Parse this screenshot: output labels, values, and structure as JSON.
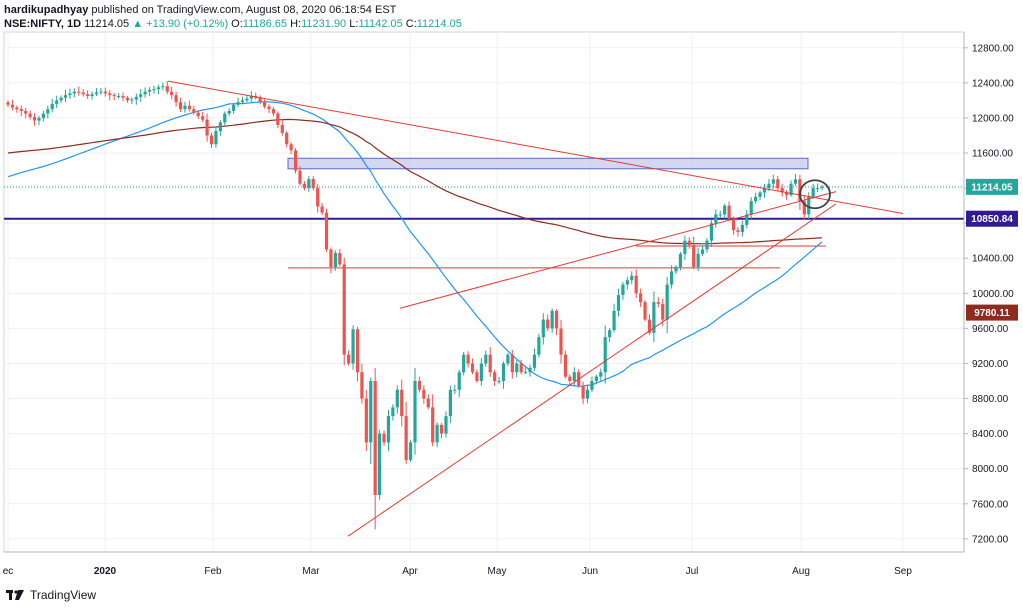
{
  "header": {
    "author": "hardikupadhyay",
    "published": "published on TradingView.com, August 08, 2020 06:18:54 EST",
    "symbol": "NSE:NIFTY, 1D",
    "last": "11214.05",
    "change": "▲ +13.90 (+0.12%)",
    "o_label": "O:",
    "o_val": "11186.65",
    "h_label": "H:",
    "h_val": "11231.90",
    "l_label": "L:",
    "l_val": "11142.05",
    "c_label": "C:",
    "c_val": "11214.05"
  },
  "footer": {
    "brand": "TradingView"
  },
  "colors": {
    "up": "#26a69a",
    "down": "#ef5350",
    "trend": "#e53935",
    "ma_blue": "#2196f3",
    "ma_brown": "#8d2b1e",
    "support": "#311b92",
    "zone_fill": "#c5cae9",
    "zone_stroke": "#5c6bc0",
    "circle": "#424242"
  },
  "chart_data": {
    "type": "candlestick",
    "y_ticks": [
      "12800.00",
      "12400.00",
      "12000.00",
      "11600.00",
      "11200.00",
      "10800.00",
      "10400.00",
      "10000.00",
      "9600.00",
      "9200.00",
      "8800.00",
      "8400.00",
      "8000.00",
      "7600.00",
      "7200.00"
    ],
    "y_tick_values": [
      12800,
      12400,
      12000,
      11600,
      11200,
      10800,
      10400,
      10000,
      9600,
      9200,
      8800,
      8400,
      8000,
      7600,
      7200
    ],
    "x_ticks": [
      "ec",
      "2020",
      "Feb",
      "Mar",
      "Apr",
      "May",
      "Jun",
      "Jul",
      "Aug",
      "Sep"
    ],
    "ylim": [
      7050,
      12980
    ],
    "price_labels": [
      {
        "text": "11214.05",
        "value": 11214.05,
        "color": "#26a69a"
      },
      {
        "text": "10850.84",
        "value": 10850.84,
        "color": "#311b92"
      },
      {
        "text": "9780.11",
        "value": 9780.11,
        "color": "#8d2b1e"
      }
    ],
    "closes": [
      12150,
      12120,
      12100,
      12080,
      12050,
      12010,
      11970,
      12000,
      12050,
      12100,
      12160,
      12200,
      12230,
      12260,
      12280,
      12300,
      12290,
      12270,
      12250,
      12270,
      12290,
      12300,
      12280,
      12260,
      12250,
      12250,
      12230,
      12200,
      12210,
      12240,
      12270,
      12300,
      12320,
      12330,
      12350,
      12362,
      12300,
      12260,
      12180,
      12100,
      12140,
      12100,
      12060,
      12020,
      11980,
      11800,
      11700,
      11850,
      11950,
      12050,
      12080,
      12150,
      12180,
      12200,
      12220,
      12250,
      12230,
      12180,
      12130,
      12100,
      12050,
      11920,
      11830,
      11700,
      11630,
      11400,
      11250,
      11200,
      11303,
      11200,
      10990,
      10920,
      10500,
      10300,
      10460,
      10330,
      9300,
      9200,
      9590,
      9100,
      8800,
      8300,
      9000,
      7700,
      8400,
      8300,
      8600,
      8700,
      8900,
      8600,
      8100,
      8300,
      9000,
      8900,
      8800,
      8700,
      8300,
      8500,
      8400,
      8600,
      8900,
      8900,
      9100,
      9300,
      9200,
      9100,
      9000,
      9200,
      9300,
      9100,
      9000,
      9000,
      9200,
      9300,
      9100,
      9200,
      9100,
      9100,
      9150,
      9300,
      9500,
      9700,
      9600,
      9800,
      9600,
      9300,
      9050,
      9000,
      9100,
      8950,
      8800,
      8900,
      9000,
      9050,
      9100,
      9500,
      9580,
      9800,
      9980,
      10100,
      10150,
      10200,
      10000,
      9900,
      9700,
      9550,
      9900,
      9880,
      9700,
      10100,
      10250,
      10300,
      10450,
      10600,
      10550,
      10300,
      10450,
      10500,
      10600,
      10800,
      10900,
      10900,
      11000,
      10850,
      10720,
      10700,
      10780,
      10900,
      11050,
      11100,
      11150,
      11200,
      11250,
      11300,
      11200,
      11150,
      11120,
      11250,
      11300,
      11050,
      10900,
      11100,
      11200,
      11200,
      11214
    ],
    "candles": [
      {
        "date": "2019-12-23",
        "o": 12170,
        "h": 12200,
        "l": 12100,
        "c": 12150
      },
      {
        "date": "2020-08-07",
        "o": 11186.65,
        "h": 11231.9,
        "l": 11142.05,
        "c": 11214.05
      }
    ],
    "ma_short": {
      "name": "",
      "color": "#2196f3"
    },
    "ma_long": {
      "name": "",
      "color": "#8d2b1e"
    },
    "zone": {
      "from_price": 11420,
      "to_price": 11540
    },
    "support_level": 10850.84,
    "horizontal_levels": [
      10290,
      10540
    ]
  }
}
